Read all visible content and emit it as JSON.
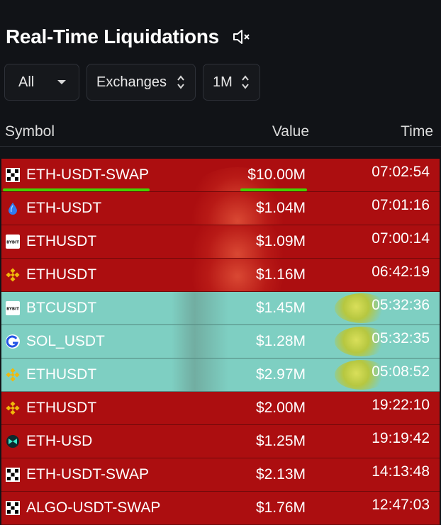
{
  "title": "Real-Time Liquidations",
  "filters": {
    "all": "All",
    "exchanges": "Exchanges",
    "timeframe": "1M"
  },
  "columns": {
    "symbol": "Symbol",
    "value": "Value",
    "time": "Time"
  },
  "colors": {
    "long_liq": "#ac0e10",
    "short_liq": "#7ecfc2",
    "highlight": "#46d000"
  },
  "rows": [
    {
      "icon": "okx-icon",
      "symbol": "ETH-USDT-SWAP",
      "value": "$10.00M",
      "time": "07:02:54",
      "side": "red"
    },
    {
      "icon": "drop-icon",
      "symbol": "ETH-USDT",
      "value": "$1.04M",
      "time": "07:01:16",
      "side": "red"
    },
    {
      "icon": "bybit-icon",
      "symbol": "ETHUSDT",
      "value": "$1.09M",
      "time": "07:00:14",
      "side": "red"
    },
    {
      "icon": "binance-icon",
      "symbol": "ETHUSDT",
      "value": "$1.16M",
      "time": "06:42:19",
      "side": "red"
    },
    {
      "icon": "bybit-icon",
      "symbol": "BTCUSDT",
      "value": "$1.45M",
      "time": "05:32:36",
      "side": "green"
    },
    {
      "icon": "gate-icon",
      "symbol": "SOL_USDT",
      "value": "$1.28M",
      "time": "05:32:35",
      "side": "green"
    },
    {
      "icon": "binance-icon",
      "symbol": "ETHUSDT",
      "value": "$2.97M",
      "time": "05:08:52",
      "side": "green"
    },
    {
      "icon": "binance-icon",
      "symbol": "ETHUSDT",
      "value": "$2.00M",
      "time": "19:22:10",
      "side": "red"
    },
    {
      "icon": "bitmex-icon",
      "symbol": "ETH-USD",
      "value": "$1.25M",
      "time": "19:19:42",
      "side": "red"
    },
    {
      "icon": "okx-icon",
      "symbol": "ETH-USDT-SWAP",
      "value": "$2.13M",
      "time": "14:13:48",
      "side": "red"
    },
    {
      "icon": "okx-icon",
      "symbol": "ALGO-USDT-SWAP",
      "value": "$1.76M",
      "time": "12:47:03",
      "side": "red"
    }
  ]
}
